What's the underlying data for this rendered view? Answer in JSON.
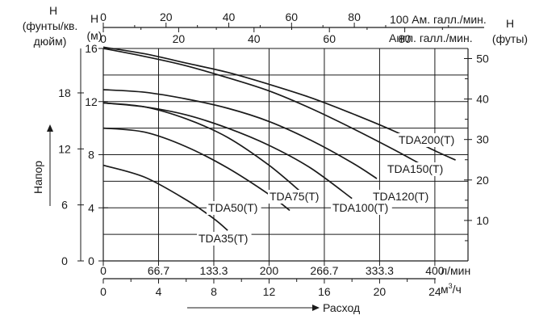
{
  "chart_data": {
    "type": "line",
    "left_axes": {
      "psi": {
        "label": [
          "H",
          "(фунты/кв.",
          "дюйм)"
        ],
        "ticks": [
          "0",
          "6",
          "12",
          "18"
        ]
      },
      "meters": {
        "label": [
          "H",
          "(м)"
        ],
        "ticks": [
          "0",
          "4",
          "8",
          "12",
          "16"
        ],
        "range": [
          0,
          16
        ]
      },
      "rotated_label": "Напор"
    },
    "right_axis": {
      "label": [
        "H",
        "(футы)"
      ],
      "ticks": [
        "10",
        "20",
        "30",
        "40",
        "50"
      ]
    },
    "top_axes": {
      "us_gpm": {
        "label": "100  Ам. галл./мин.",
        "ticks": [
          "0",
          "20",
          "40",
          "60",
          "80"
        ]
      },
      "uk_gpm": {
        "label": "Англ. галл./мин.",
        "ticks": [
          "0",
          "20",
          "40",
          "60",
          "80"
        ]
      }
    },
    "bottom_axes": {
      "lpm": {
        "label": "л/мин",
        "ticks": [
          "0",
          "66.7",
          "133.3",
          "200",
          "266.7",
          "333.3",
          "400"
        ],
        "range": [
          0,
          440
        ]
      },
      "m3h": {
        "label_main": "м",
        "label_sup": "3",
        "label_tail": "/ч",
        "ticks": [
          "0",
          "4",
          "8",
          "12",
          "16",
          "20",
          "24"
        ]
      },
      "arrow_label": "Расход"
    },
    "xunit": "л/мин",
    "yunit": "м",
    "series": [
      {
        "name": "TDA35(T)",
        "x": [
          0,
          50,
          100,
          133,
          150
        ],
        "y": [
          7.2,
          6.3,
          4.6,
          3.2,
          2.3
        ]
      },
      {
        "name": "TDA50(T)",
        "x": [
          0,
          50,
          100,
          150,
          200,
          225
        ],
        "y": [
          10.0,
          9.7,
          8.6,
          7.0,
          5.0,
          3.8
        ]
      },
      {
        "name": "TDA75(T)",
        "x": [
          0,
          50,
          100,
          150,
          200,
          242
        ],
        "y": [
          11.9,
          11.6,
          10.7,
          9.3,
          7.2,
          5.0
        ]
      },
      {
        "name": "TDA100(T)",
        "x": [
          0,
          50,
          100,
          150,
          200,
          250,
          300
        ],
        "y": [
          11.9,
          11.6,
          11.0,
          10.0,
          8.7,
          7.0,
          4.7
        ]
      },
      {
        "name": "TDA120(T)",
        "x": [
          0,
          50,
          100,
          150,
          200,
          250,
          300,
          330
        ],
        "y": [
          12.9,
          12.7,
          12.2,
          11.5,
          10.5,
          9.1,
          7.4,
          6.2
        ]
      },
      {
        "name": "TDA150(T)",
        "x": [
          0,
          50,
          100,
          150,
          200,
          250,
          300,
          350,
          400
        ],
        "y": [
          16.0,
          15.4,
          14.7,
          13.8,
          12.8,
          11.5,
          10.0,
          8.4,
          6.7
        ]
      },
      {
        "name": "TDA200(T)",
        "x": [
          0,
          50,
          100,
          150,
          200,
          250,
          300,
          350,
          400,
          425
        ],
        "y": [
          16.1,
          15.6,
          14.9,
          14.2,
          13.3,
          12.3,
          11.1,
          9.8,
          8.3,
          7.6
        ]
      }
    ],
    "xlim": [
      0,
      440
    ],
    "ylim": [
      0,
      16
    ],
    "grid": true
  }
}
